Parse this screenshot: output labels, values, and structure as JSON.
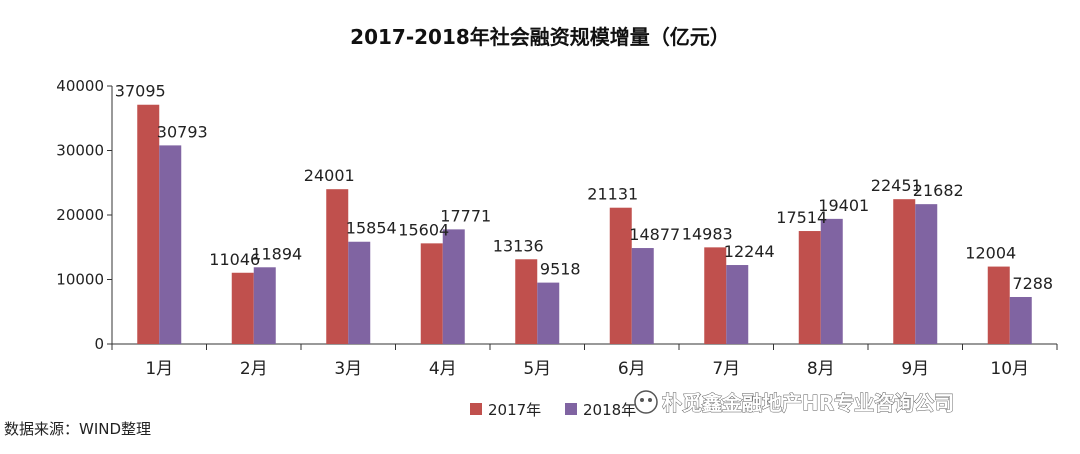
{
  "chart_data": {
    "type": "bar",
    "title": "2017-2018年社会融资规模增量（亿元）",
    "categories": [
      "1月",
      "2月",
      "3月",
      "4月",
      "5月",
      "6月",
      "7月",
      "8月",
      "9月",
      "10月"
    ],
    "series": [
      {
        "name": "2017年",
        "values": [
          37095,
          11046,
          24001,
          15604,
          13136,
          21131,
          14983,
          17514,
          22451,
          12004
        ],
        "color": "#c0504d"
      },
      {
        "name": "2018年",
        "values": [
          30793,
          11894,
          15854,
          17771,
          9518,
          14877,
          12244,
          19401,
          21682,
          7288
        ],
        "color": "#8064a2"
      }
    ],
    "ylim": [
      0,
      40000
    ],
    "yticks": [
      0,
      10000,
      20000,
      30000,
      40000
    ],
    "grid": false,
    "legend_position": "bottom-center",
    "xlabel": "",
    "ylabel": ""
  },
  "source_note": "数据来源：WIND整理",
  "watermark": {
    "icon": "wechat-icon",
    "text": "朴觅鑫金融地产HR专业咨询公司"
  }
}
